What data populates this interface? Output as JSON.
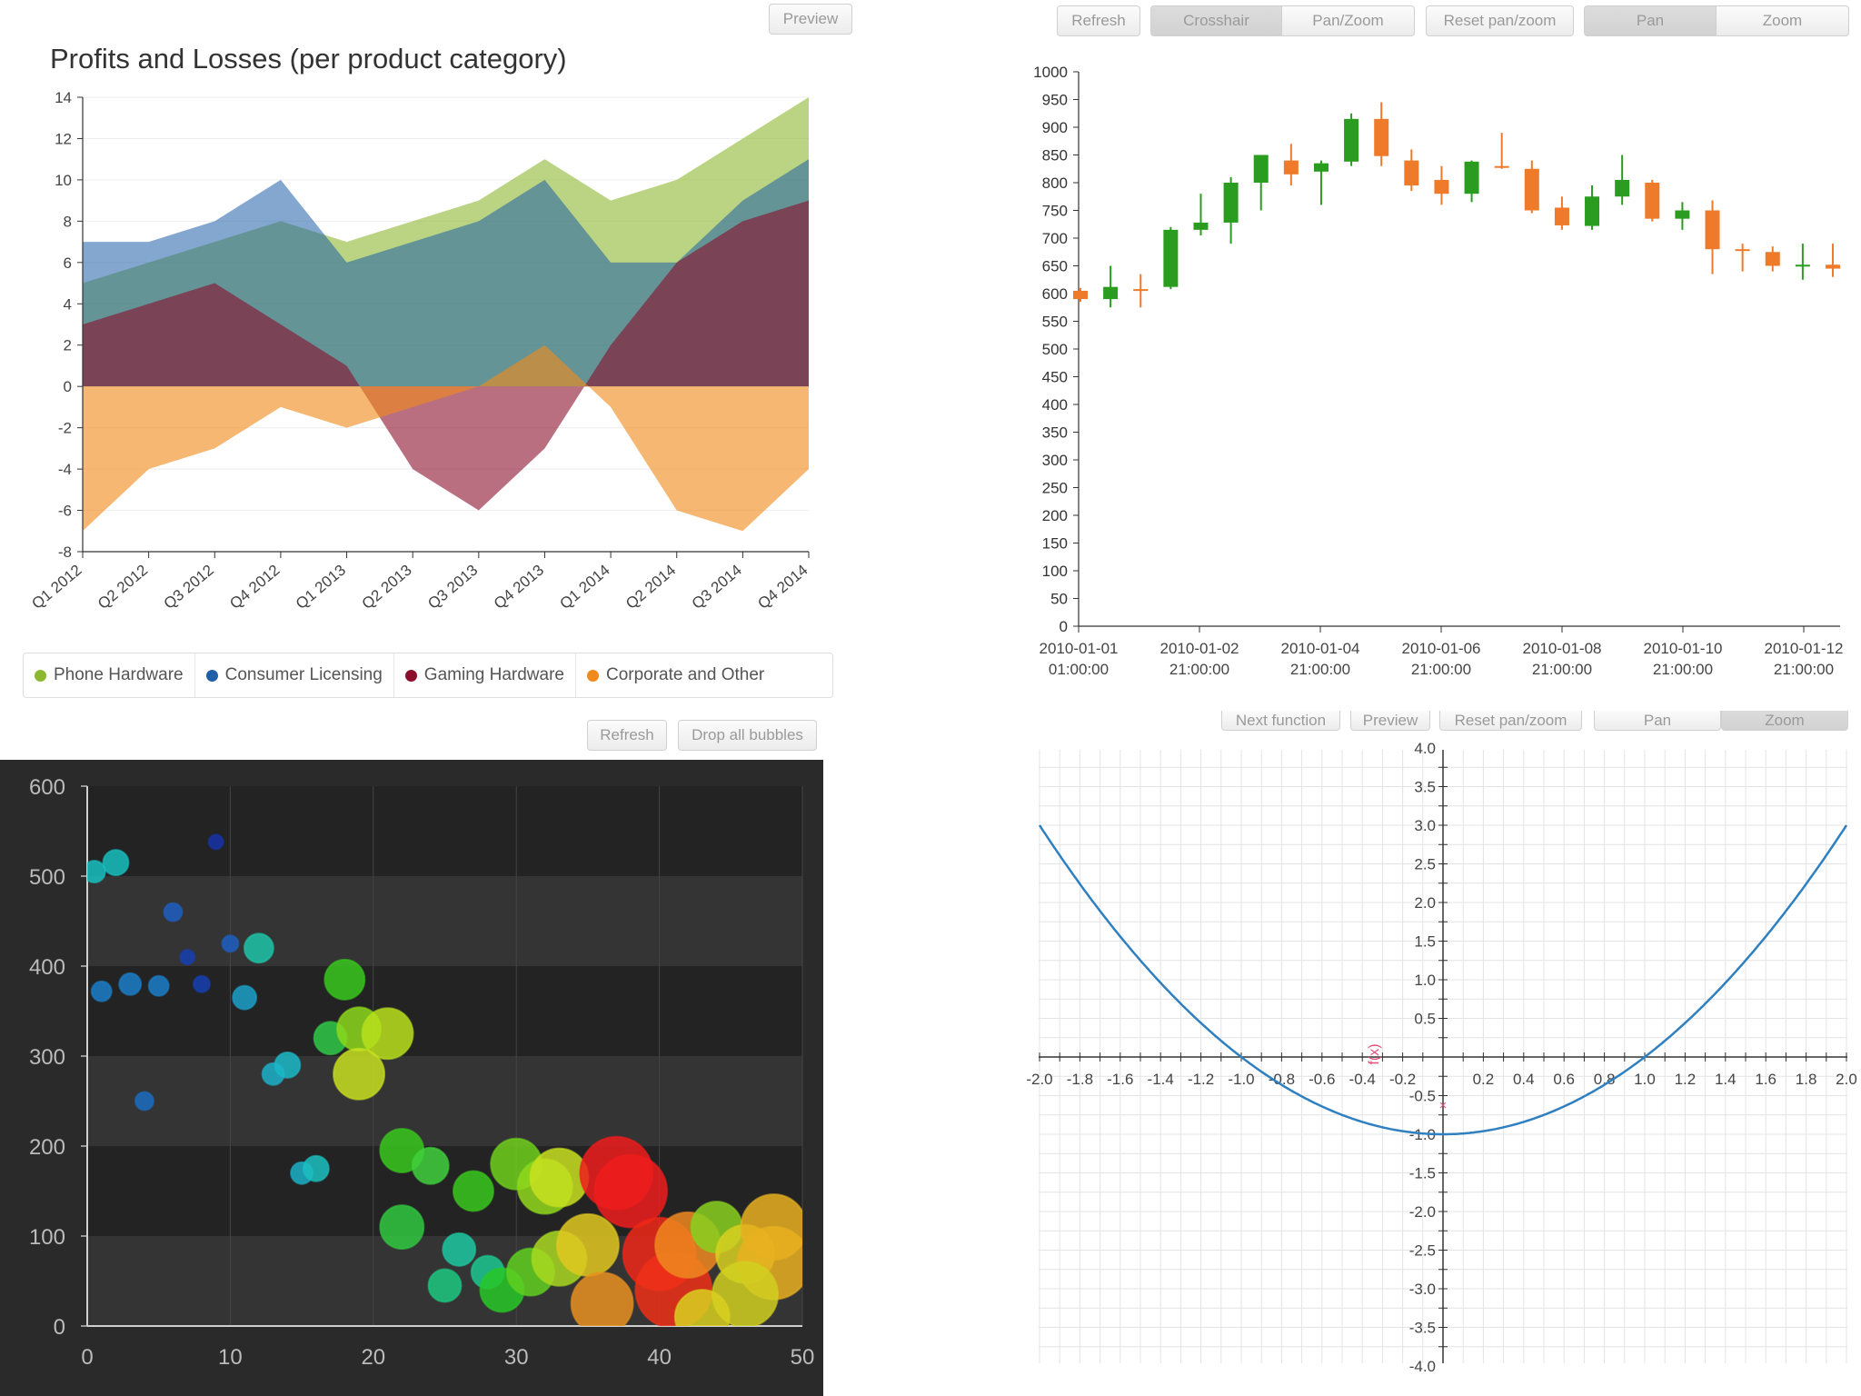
{
  "area_panel": {
    "title": "Profits and Losses (per product category)",
    "preview_button": "Preview",
    "legend": [
      {
        "label": "Phone Hardware",
        "color": "#8cb831"
      },
      {
        "label": "Consumer Licensing",
        "color": "#1f5fa8"
      },
      {
        "label": "Gaming Hardware",
        "color": "#8b0f2b"
      },
      {
        "label": "Corporate and Other",
        "color": "#f08a1c"
      }
    ]
  },
  "candle_panel": {
    "toolbar": {
      "refresh": "Refresh",
      "crosshair": "Crosshair",
      "panzoom": "Pan/Zoom",
      "reset": "Reset pan/zoom",
      "pan": "Pan",
      "zoom": "Zoom"
    }
  },
  "bubble_panel": {
    "toolbar": {
      "refresh": "Refresh",
      "drop": "Drop all bubbles"
    }
  },
  "function_panel": {
    "toolbar": {
      "next": "Next function",
      "preview": "Preview",
      "reset": "Reset pan/zoom",
      "pan": "Pan",
      "zoom": "Zoom"
    },
    "marker_label": "f(x)"
  },
  "chart_data": [
    {
      "type": "area",
      "title": "Profits and Losses (per product category)",
      "categories": [
        "Q1 2012",
        "Q2 2012",
        "Q3 2012",
        "Q4 2012",
        "Q1 2013",
        "Q2 2013",
        "Q3 2013",
        "Q4 2013",
        "Q1 2014",
        "Q2 2014",
        "Q3 2014",
        "Q4 2014"
      ],
      "ylim": [
        -8,
        14
      ],
      "yticks": [
        14,
        12,
        10,
        8,
        6,
        4,
        2,
        0,
        -2,
        -4,
        -6,
        -8
      ],
      "series": [
        {
          "name": "Phone Hardware",
          "color": "#8cb831",
          "values": [
            5,
            6,
            7,
            8,
            7,
            8,
            9,
            11,
            9,
            10,
            12,
            14
          ]
        },
        {
          "name": "Consumer Licensing",
          "color": "#1f5fa8",
          "values": [
            7,
            7,
            8,
            10,
            6,
            7,
            8,
            10,
            6,
            6,
            9,
            11
          ]
        },
        {
          "name": "Gaming Hardware",
          "color": "#8b0f2b",
          "values": [
            3,
            4,
            5,
            3,
            1,
            -4,
            -6,
            -3,
            2,
            6,
            8,
            9
          ]
        },
        {
          "name": "Corporate and Other",
          "color": "#f08a1c",
          "values": [
            -7,
            -4,
            -3,
            -1,
            -2,
            -1,
            0,
            2,
            -1,
            -6,
            -7,
            -4
          ]
        }
      ],
      "legend": "bottom"
    },
    {
      "type": "candlestick",
      "ylim": [
        0,
        1000
      ],
      "yticks": [
        1000,
        950,
        900,
        850,
        800,
        750,
        700,
        650,
        600,
        550,
        500,
        450,
        400,
        350,
        300,
        250,
        200,
        150,
        100,
        50,
        0
      ],
      "xticks": [
        {
          "date": "2010-01-01",
          "time": "01:00:00"
        },
        {
          "date": "2010-01-02",
          "time": "21:00:00"
        },
        {
          "date": "2010-01-04",
          "time": "21:00:00"
        },
        {
          "date": "2010-01-06",
          "time": "21:00:00"
        },
        {
          "date": "2010-01-08",
          "time": "21:00:00"
        },
        {
          "date": "2010-01-10",
          "time": "21:00:00"
        },
        {
          "date": "2010-01-12",
          "time": "21:00:00"
        }
      ],
      "candles": [
        {
          "o": 605,
          "h": 610,
          "l": 585,
          "c": 590
        },
        {
          "o": 590,
          "h": 650,
          "l": 575,
          "c": 612
        },
        {
          "o": 608,
          "h": 635,
          "l": 575,
          "c": 606
        },
        {
          "o": 612,
          "h": 720,
          "l": 608,
          "c": 715
        },
        {
          "o": 715,
          "h": 780,
          "l": 705,
          "c": 728
        },
        {
          "o": 728,
          "h": 810,
          "l": 690,
          "c": 800
        },
        {
          "o": 800,
          "h": 850,
          "l": 750,
          "c": 850
        },
        {
          "o": 840,
          "h": 870,
          "l": 795,
          "c": 815
        },
        {
          "o": 820,
          "h": 840,
          "l": 760,
          "c": 835
        },
        {
          "o": 838,
          "h": 925,
          "l": 830,
          "c": 915
        },
        {
          "o": 915,
          "h": 945,
          "l": 830,
          "c": 848
        },
        {
          "o": 840,
          "h": 860,
          "l": 785,
          "c": 795
        },
        {
          "o": 805,
          "h": 830,
          "l": 760,
          "c": 780
        },
        {
          "o": 780,
          "h": 840,
          "l": 765,
          "c": 838
        },
        {
          "o": 830,
          "h": 890,
          "l": 825,
          "c": 827
        },
        {
          "o": 825,
          "h": 840,
          "l": 745,
          "c": 750
        },
        {
          "o": 755,
          "h": 775,
          "l": 715,
          "c": 723
        },
        {
          "o": 722,
          "h": 795,
          "l": 715,
          "c": 775
        },
        {
          "o": 775,
          "h": 850,
          "l": 760,
          "c": 805
        },
        {
          "o": 800,
          "h": 805,
          "l": 730,
          "c": 735
        },
        {
          "o": 735,
          "h": 765,
          "l": 715,
          "c": 750
        },
        {
          "o": 750,
          "h": 768,
          "l": 635,
          "c": 680
        },
        {
          "o": 680,
          "h": 690,
          "l": 640,
          "c": 678
        },
        {
          "o": 675,
          "h": 685,
          "l": 640,
          "c": 650
        },
        {
          "o": 650,
          "h": 690,
          "l": 625,
          "c": 652
        },
        {
          "o": 652,
          "h": 690,
          "l": 630,
          "c": 645
        }
      ]
    },
    {
      "type": "scatter",
      "xlim": [
        0,
        50
      ],
      "ylim": [
        0,
        600
      ],
      "xticks": [
        0,
        10,
        20,
        30,
        40,
        50
      ],
      "yticks": [
        600,
        500,
        400,
        300,
        200,
        100,
        0
      ],
      "points": [
        {
          "x": 0.5,
          "y": 505,
          "r": 12,
          "c": "#17c0c0"
        },
        {
          "x": 2,
          "y": 515,
          "r": 14,
          "c": "#17c0c0"
        },
        {
          "x": 9,
          "y": 538,
          "r": 8,
          "c": "#1633a8"
        },
        {
          "x": 6,
          "y": 460,
          "r": 10,
          "c": "#1d5fbf"
        },
        {
          "x": 7,
          "y": 410,
          "r": 8,
          "c": "#1640b0"
        },
        {
          "x": 10,
          "y": 425,
          "r": 9,
          "c": "#1d5fbf"
        },
        {
          "x": 12,
          "y": 420,
          "r": 16,
          "c": "#1dc4a8"
        },
        {
          "x": 1,
          "y": 372,
          "r": 11,
          "c": "#1b7ec8"
        },
        {
          "x": 3,
          "y": 380,
          "r": 12,
          "c": "#1b7ec8"
        },
        {
          "x": 5,
          "y": 378,
          "r": 11,
          "c": "#1b7ec8"
        },
        {
          "x": 8,
          "y": 380,
          "r": 9,
          "c": "#1640b0"
        },
        {
          "x": 11,
          "y": 365,
          "r": 13,
          "c": "#1ba0c8"
        },
        {
          "x": 4,
          "y": 250,
          "r": 10,
          "c": "#1b6cc0"
        },
        {
          "x": 13,
          "y": 280,
          "r": 12,
          "c": "#1bb0c8"
        },
        {
          "x": 14,
          "y": 290,
          "r": 14,
          "c": "#1bb8c8"
        },
        {
          "x": 15,
          "y": 170,
          "r": 12,
          "c": "#1bb0c8"
        },
        {
          "x": 16,
          "y": 175,
          "r": 14,
          "c": "#1bc0c0"
        },
        {
          "x": 18,
          "y": 385,
          "r": 22,
          "c": "#38c81c"
        },
        {
          "x": 17,
          "y": 320,
          "r": 18,
          "c": "#30c848"
        },
        {
          "x": 19,
          "y": 330,
          "r": 24,
          "c": "#8cd81c"
        },
        {
          "x": 21,
          "y": 325,
          "r": 28,
          "c": "#b8e01c"
        },
        {
          "x": 19,
          "y": 280,
          "r": 28,
          "c": "#c8e020"
        },
        {
          "x": 22,
          "y": 195,
          "r": 24,
          "c": "#38c81c"
        },
        {
          "x": 24,
          "y": 178,
          "r": 20,
          "c": "#40d03c"
        },
        {
          "x": 22,
          "y": 110,
          "r": 24,
          "c": "#30c840"
        },
        {
          "x": 27,
          "y": 150,
          "r": 22,
          "c": "#38c81c"
        },
        {
          "x": 26,
          "y": 85,
          "r": 18,
          "c": "#1cc8a0"
        },
        {
          "x": 28,
          "y": 60,
          "r": 18,
          "c": "#1cc890"
        },
        {
          "x": 25,
          "y": 45,
          "r": 18,
          "c": "#1cc880"
        },
        {
          "x": 29,
          "y": 40,
          "r": 24,
          "c": "#28c828"
        },
        {
          "x": 30,
          "y": 180,
          "r": 28,
          "c": "#70d01c"
        },
        {
          "x": 32,
          "y": 155,
          "r": 30,
          "c": "#90d81c"
        },
        {
          "x": 33,
          "y": 165,
          "r": 32,
          "c": "#c8e020"
        },
        {
          "x": 31,
          "y": 60,
          "r": 26,
          "c": "#60d020"
        },
        {
          "x": 33,
          "y": 75,
          "r": 30,
          "c": "#a8d820"
        },
        {
          "x": 35,
          "y": 90,
          "r": 34,
          "c": "#e0c820"
        },
        {
          "x": 37,
          "y": 170,
          "r": 40,
          "c": "#ee1c1c"
        },
        {
          "x": 38,
          "y": 150,
          "r": 40,
          "c": "#ee1c1c"
        },
        {
          "x": 36,
          "y": 25,
          "r": 34,
          "c": "#e89020"
        },
        {
          "x": 40,
          "y": 80,
          "r": 40,
          "c": "#ee2818"
        },
        {
          "x": 41,
          "y": 40,
          "r": 42,
          "c": "#ee3018"
        },
        {
          "x": 42,
          "y": 90,
          "r": 36,
          "c": "#ee8820"
        },
        {
          "x": 44,
          "y": 110,
          "r": 28,
          "c": "#88d020"
        },
        {
          "x": 46,
          "y": 80,
          "r": 32,
          "c": "#d8d020"
        },
        {
          "x": 48,
          "y": 110,
          "r": 36,
          "c": "#e8b020"
        },
        {
          "x": 48,
          "y": 70,
          "r": 40,
          "c": "#e8b020"
        },
        {
          "x": 46,
          "y": 35,
          "r": 36,
          "c": "#d0d020"
        },
        {
          "x": 43,
          "y": 10,
          "r": 30,
          "c": "#d8d020"
        }
      ]
    },
    {
      "type": "line",
      "xlim": [
        -2,
        2
      ],
      "ylim": [
        -4,
        4
      ],
      "xticks": [
        -2.0,
        -1.8,
        -1.6,
        -1.4,
        -1.2,
        -1.0,
        -0.8,
        -0.6,
        -0.4,
        -0.2,
        0.2,
        0.4,
        0.6,
        0.8,
        1.0,
        1.2,
        1.4,
        1.6,
        1.8,
        2.0
      ],
      "yticks": [
        4.0,
        3.5,
        3.0,
        2.5,
        2.0,
        1.5,
        1.0,
        0.5,
        -0.5,
        -1.0,
        -1.5,
        -2.0,
        -2.5,
        -3.0,
        -3.5,
        -4.0
      ],
      "series": [
        {
          "function": "x^2 - 1",
          "color": "#2f80c0"
        }
      ],
      "marker": {
        "x": 0,
        "y": -0.6
      }
    }
  ]
}
